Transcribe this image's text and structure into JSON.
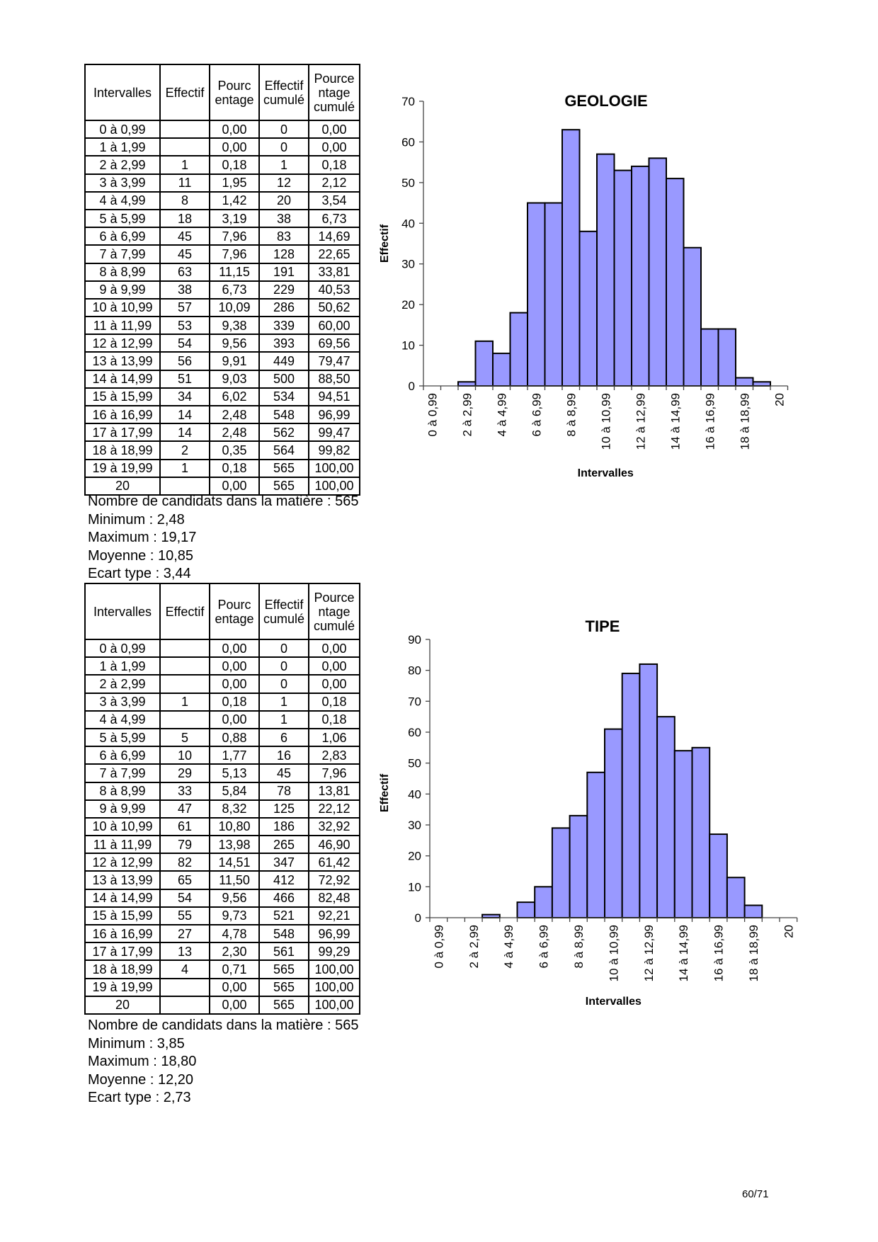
{
  "headers": [
    "Intervalles",
    "Effectif",
    "Pourc entage",
    "Effectif cumulé",
    "Pource ntage cumulé"
  ],
  "tables": [
    {
      "rows": [
        [
          "0 à 0,99",
          "",
          "0,00",
          "0",
          "0,00"
        ],
        [
          "1 à 1,99",
          "",
          "0,00",
          "0",
          "0,00"
        ],
        [
          "2 à 2,99",
          "1",
          "0,18",
          "1",
          "0,18"
        ],
        [
          "3 à 3,99",
          "11",
          "1,95",
          "12",
          "2,12"
        ],
        [
          "4 à 4,99",
          "8",
          "1,42",
          "20",
          "3,54"
        ],
        [
          "5 à 5,99",
          "18",
          "3,19",
          "38",
          "6,73"
        ],
        [
          "6 à 6,99",
          "45",
          "7,96",
          "83",
          "14,69"
        ],
        [
          "7 à 7,99",
          "45",
          "7,96",
          "128",
          "22,65"
        ],
        [
          "8 à 8,99",
          "63",
          "11,15",
          "191",
          "33,81"
        ],
        [
          "9 à 9,99",
          "38",
          "6,73",
          "229",
          "40,53"
        ],
        [
          "10 à 10,99",
          "57",
          "10,09",
          "286",
          "50,62"
        ],
        [
          "11 à 11,99",
          "53",
          "9,38",
          "339",
          "60,00"
        ],
        [
          "12 à 12,99",
          "54",
          "9,56",
          "393",
          "69,56"
        ],
        [
          "13 à 13,99",
          "56",
          "9,91",
          "449",
          "79,47"
        ],
        [
          "14 à 14,99",
          "51",
          "9,03",
          "500",
          "88,50"
        ],
        [
          "15 à 15,99",
          "34",
          "6,02",
          "534",
          "94,51"
        ],
        [
          "16 à 16,99",
          "14",
          "2,48",
          "548",
          "96,99"
        ],
        [
          "17 à 17,99",
          "14",
          "2,48",
          "562",
          "99,47"
        ],
        [
          "18 à 18,99",
          "2",
          "0,35",
          "564",
          "99,82"
        ],
        [
          "19 à 19,99",
          "1",
          "0,18",
          "565",
          "100,00"
        ],
        [
          "20",
          "",
          "0,00",
          "565",
          "100,00"
        ]
      ],
      "stats": [
        "Nombre de candidats dans la matière : 565",
        "Minimum : 2,48",
        "Maximum : 19,17",
        "Moyenne : 10,85",
        "Ecart type : 3,44"
      ]
    },
    {
      "rows": [
        [
          "0 à 0,99",
          "",
          "0,00",
          "0",
          "0,00"
        ],
        [
          "1 à 1,99",
          "",
          "0,00",
          "0",
          "0,00"
        ],
        [
          "2 à 2,99",
          "",
          "0,00",
          "0",
          "0,00"
        ],
        [
          "3 à 3,99",
          "1",
          "0,18",
          "1",
          "0,18"
        ],
        [
          "4 à 4,99",
          "",
          "0,00",
          "1",
          "0,18"
        ],
        [
          "5 à 5,99",
          "5",
          "0,88",
          "6",
          "1,06"
        ],
        [
          "6 à 6,99",
          "10",
          "1,77",
          "16",
          "2,83"
        ],
        [
          "7 à 7,99",
          "29",
          "5,13",
          "45",
          "7,96"
        ],
        [
          "8 à 8,99",
          "33",
          "5,84",
          "78",
          "13,81"
        ],
        [
          "9 à 9,99",
          "47",
          "8,32",
          "125",
          "22,12"
        ],
        [
          "10 à 10,99",
          "61",
          "10,80",
          "186",
          "32,92"
        ],
        [
          "11 à 11,99",
          "79",
          "13,98",
          "265",
          "46,90"
        ],
        [
          "12 à 12,99",
          "82",
          "14,51",
          "347",
          "61,42"
        ],
        [
          "13 à 13,99",
          "65",
          "11,50",
          "412",
          "72,92"
        ],
        [
          "14 à 14,99",
          "54",
          "9,56",
          "466",
          "82,48"
        ],
        [
          "15 à 15,99",
          "55",
          "9,73",
          "521",
          "92,21"
        ],
        [
          "16 à 16,99",
          "27",
          "4,78",
          "548",
          "96,99"
        ],
        [
          "17 à 17,99",
          "13",
          "2,30",
          "561",
          "99,29"
        ],
        [
          "18 à 18,99",
          "4",
          "0,71",
          "565",
          "100,00"
        ],
        [
          "19 à 19,99",
          "",
          "0,00",
          "565",
          "100,00"
        ],
        [
          "20",
          "",
          "0,00",
          "565",
          "100,00"
        ]
      ],
      "stats": [
        "Nombre de candidats dans la matière : 565",
        "Minimum : 3,85",
        "Maximum : 18,80",
        "Moyenne : 12,20",
        "Ecart type : 2,73"
      ]
    }
  ],
  "chart_data": [
    {
      "type": "bar",
      "title": "GEOLOGIE",
      "xlabel": "Intervalles",
      "ylabel": "Effectif",
      "ylim": [
        0,
        70
      ],
      "yticks": [
        "0",
        "10",
        "20",
        "30",
        "40",
        "50",
        "60",
        "70"
      ],
      "categories": [
        "0 à 0,99",
        "1 à 1,99",
        "2 à 2,99",
        "3 à 3,99",
        "4 à 4,99",
        "5 à 5,99",
        "6 à 6,99",
        "7 à 7,99",
        "8 à 8,99",
        "9 à 9,99",
        "10 à 10,99",
        "11 à 11,99",
        "12 à 12,99",
        "13 à 13,99",
        "14 à 14,99",
        "15 à 15,99",
        "16 à 16,99",
        "17 à 17,99",
        "18 à 18,99",
        "19 à 19,99",
        "20"
      ],
      "values": [
        0,
        0,
        1,
        11,
        8,
        18,
        45,
        45,
        63,
        38,
        57,
        53,
        54,
        56,
        51,
        34,
        14,
        14,
        2,
        1,
        0
      ],
      "bar_color": "#9999ff",
      "grid": false
    },
    {
      "type": "bar",
      "title": "TIPE",
      "xlabel": "Intervalles",
      "ylabel": "Effectif",
      "ylim": [
        0,
        90
      ],
      "yticks": [
        "0",
        "10",
        "20",
        "30",
        "40",
        "50",
        "60",
        "70",
        "80",
        "90"
      ],
      "categories": [
        "0 à 0,99",
        "1 à 1,99",
        "2 à 2,99",
        "3 à 3,99",
        "4 à 4,99",
        "5 à 5,99",
        "6 à 6,99",
        "7 à 7,99",
        "8 à 8,99",
        "9 à 9,99",
        "10 à 10,99",
        "11 à 11,99",
        "12 à 12,99",
        "13 à 13,99",
        "14 à 14,99",
        "15 à 15,99",
        "16 à 16,99",
        "17 à 17,99",
        "18 à 18,99",
        "19 à 19,99",
        "20"
      ],
      "values": [
        0,
        0,
        0,
        1,
        0,
        5,
        10,
        29,
        33,
        47,
        61,
        79,
        82,
        65,
        54,
        55,
        27,
        13,
        4,
        0,
        0
      ],
      "bar_color": "#9999ff",
      "grid": false
    }
  ],
  "page_number": "60/71"
}
